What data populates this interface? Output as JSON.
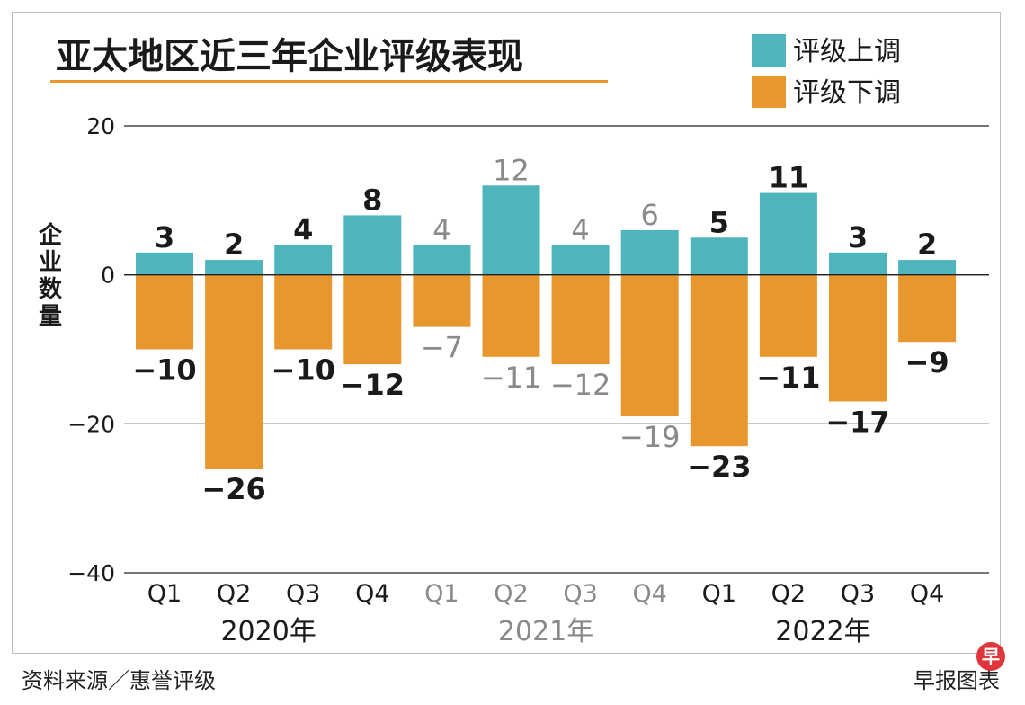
{
  "source": "资料来源／惠誉评级",
  "credit": "早报图表",
  "logo_text": "早",
  "colors": {
    "up": "#4fb5bc",
    "down": "#e8972f",
    "title_rule": "#e8972f",
    "dark": "#1a1a1a",
    "muted": "#8a8a8a"
  },
  "chart_data": {
    "type": "bar",
    "title": "亚太地区近三年企业评级表现",
    "ylabel": "企业数量",
    "ylim": [
      -40,
      20
    ],
    "yticks": [
      20,
      0,
      -20,
      -40
    ],
    "ytick_labels": [
      "20",
      "0",
      "−20",
      "−40"
    ],
    "categories": [
      "Q1",
      "Q2",
      "Q3",
      "Q4",
      "Q1",
      "Q2",
      "Q3",
      "Q4",
      "Q1",
      "Q2",
      "Q3",
      "Q4"
    ],
    "years": [
      {
        "label": "2020年",
        "muted": false
      },
      {
        "label": "2021年",
        "muted": true
      },
      {
        "label": "2022年",
        "muted": false
      }
    ],
    "series": [
      {
        "name": "评级上调",
        "values": [
          3,
          2,
          4,
          8,
          4,
          12,
          4,
          6,
          5,
          11,
          3,
          2
        ],
        "labels": [
          "3",
          "2",
          "4",
          "8",
          "4",
          "12",
          "4",
          "6",
          "5",
          "11",
          "3",
          "2"
        ]
      },
      {
        "name": "评级下调",
        "values": [
          -10,
          -26,
          -10,
          -12,
          -7,
          -11,
          -12,
          -19,
          -23,
          -11,
          -17,
          -9
        ],
        "labels": [
          "−10",
          "−26",
          "−10",
          "−12",
          "−7",
          "−11",
          "−12",
          "−19",
          "−23",
          "−11",
          "−17",
          "−9"
        ]
      }
    ],
    "legend": "top-right"
  }
}
